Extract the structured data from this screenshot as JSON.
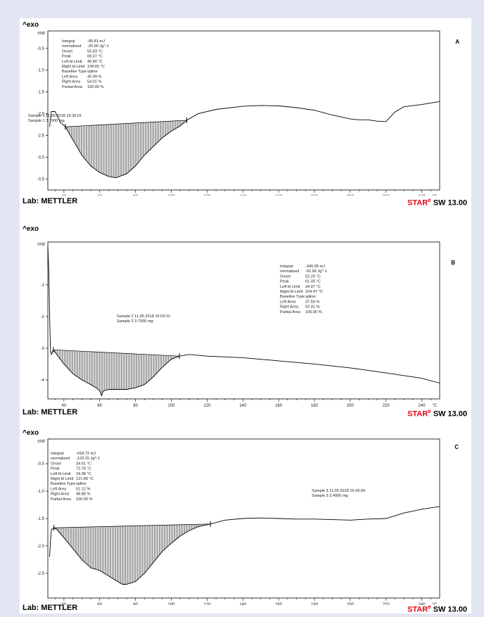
{
  "panels": [
    {
      "exo_label": "^exo",
      "letter": "A",
      "y_unit": "mW",
      "x_unit": "°C",
      "footer": {
        "lab": "Lab: METTLER",
        "brand": "STAR",
        "reg": "e",
        "sw": "SW 13.00"
      },
      "sample_lines": [
        "Sample 1   11.05.2018 13:36:01",
        "Sample 1   3.7000 mg"
      ],
      "results": [
        {
          "label": "Integral",
          "value": "-95.81 mJ"
        },
        {
          "label": "  normalized",
          "value": "-25.90 Jg^-1"
        },
        {
          "label": "Onset",
          "value": "50.83 °C"
        },
        {
          "label": "Peak",
          "value": "69.07 °C"
        },
        {
          "label": "Left bl Limit",
          "value": "40.80 °C"
        },
        {
          "label": "Right bl Limit",
          "value": "108.65 °C"
        },
        {
          "label": "Baseline Type",
          "value": "spline"
        },
        {
          "label": "Left Area",
          "value": "45.99 %"
        },
        {
          "label": "Right Area",
          "value": "54.01 %"
        },
        {
          "label": "Partial Area",
          "value": "100.00 %"
        }
      ]
    },
    {
      "exo_label": "^exo",
      "letter": "B",
      "y_unit": "mW",
      "x_unit": "°C",
      "footer": {
        "lab": "Lab: METTLER",
        "brand": "STAR",
        "reg": "e",
        "sw": "SW 13.00"
      },
      "sample_lines": [
        "Sample 2   11.05.2018 15:03:22",
        "Sample 2   3.7000 mg"
      ],
      "results": [
        {
          "label": "Integral",
          "value": "-340.05 mJ"
        },
        {
          "label": "  normalized",
          "value": "-91.90 Jg^-1"
        },
        {
          "label": "Onset",
          "value": "52.20 °C"
        },
        {
          "label": "Peak",
          "value": "61.05 °C"
        },
        {
          "label": "Left bl Limit",
          "value": "34.07 °C"
        },
        {
          "label": "Right bl Limit",
          "value": "104.47 °C"
        },
        {
          "label": "Baseline Type",
          "value": "spline"
        },
        {
          "label": "Left Area",
          "value": "37.59 %"
        },
        {
          "label": "Right Area",
          "value": "62.41 %"
        },
        {
          "label": "Partial Area",
          "value": "100.00 %"
        }
      ]
    },
    {
      "exo_label": "^exo",
      "letter": "C",
      "y_unit": "mW",
      "x_unit": "°C",
      "footer": {
        "lab": "Lab: METTLER",
        "brand": "STAR",
        "reg": "e",
        "sw": "SW 13.00"
      },
      "sample_lines": [
        "Sample 3   11.05.2018 15:42:09",
        "Sample 3   3.4000 mg"
      ],
      "results": [
        {
          "label": "Integral",
          "value": "-418.72 mJ"
        },
        {
          "label": "  normalized",
          "value": "-123.15 Jg^-1"
        },
        {
          "label": "Onset",
          "value": "34.91 °C"
        },
        {
          "label": "Peak",
          "value": "72.76 °C"
        },
        {
          "label": "Left bl Limit",
          "value": "34.38 °C"
        },
        {
          "label": "Right bl Limit",
          "value": "121.89 °C"
        },
        {
          "label": "Baseline Type",
          "value": "spline"
        },
        {
          "label": "Left Area",
          "value": "51.12 %"
        },
        {
          "label": "Right Area",
          "value": "48.88 %"
        },
        {
          "label": "Partial Area",
          "value": "100.00 %"
        }
      ]
    }
  ],
  "chart_data": [
    {
      "type": "line",
      "panel": "A",
      "xlabel": "°C",
      "ylabel": "mW",
      "xlim": [
        31,
        250
      ],
      "ylim": [
        -3.75,
        -0.1
      ],
      "xticks": [
        40,
        60,
        80,
        100,
        120,
        140,
        160,
        180,
        200,
        220,
        240
      ],
      "yticks": [
        -0.5,
        -1.0,
        -1.5,
        -2.0,
        -2.5,
        -3.0,
        -3.5
      ],
      "ytick_labels": [
        "-0.5",
        "-1.0",
        "-1.5",
        "-2.0",
        "-2.5",
        "-3.0",
        "-3.5"
      ],
      "grid": false,
      "baseline": {
        "x1": 40.8,
        "y1": -2.3,
        "x2": 108.65,
        "y2": -2.15
      },
      "series": [
        {
          "x": [
            32,
            33,
            35,
            38,
            40.8,
            45,
            50,
            55,
            60,
            65,
            69.07,
            75,
            80,
            85,
            90,
            95,
            100,
            105,
            108.65,
            115,
            125,
            140,
            150,
            160,
            170,
            180,
            190,
            200,
            205,
            210,
            215,
            220,
            225,
            230,
            240,
            250
          ],
          "y": [
            -2.3,
            -1.95,
            -1.95,
            -2.2,
            -2.3,
            -2.6,
            -2.95,
            -3.2,
            -3.35,
            -3.44,
            -3.47,
            -3.38,
            -3.2,
            -2.95,
            -2.75,
            -2.55,
            -2.4,
            -2.28,
            -2.15,
            -2.0,
            -1.9,
            -1.83,
            -1.81,
            -1.82,
            -1.86,
            -1.92,
            -2.03,
            -2.12,
            -2.14,
            -2.14,
            -2.17,
            -2.18,
            -1.96,
            -1.84,
            -1.79,
            -1.72
          ]
        }
      ]
    },
    {
      "type": "line",
      "panel": "B",
      "xlabel": "°C",
      "ylabel": "mW",
      "xlim": [
        31,
        250
      ],
      "ylim": [
        -4.6,
        0.35
      ],
      "xticks": [
        40,
        60,
        80,
        100,
        120,
        140,
        160,
        180,
        200,
        220,
        240
      ],
      "yticks": [
        -1,
        -2,
        -3,
        -4
      ],
      "ytick_labels": [
        "-1",
        "-2",
        "-3",
        "-4"
      ],
      "grid": false,
      "baseline": {
        "x1": 34.07,
        "y1": -3.05,
        "x2": 104.47,
        "y2": -3.25
      },
      "series": [
        {
          "x": [
            31,
            31.5,
            32,
            32.5,
            33,
            34.07,
            40,
            45,
            50,
            55,
            58,
            60,
            61.05,
            62,
            65,
            70,
            75,
            80,
            85,
            90,
            95,
            100,
            104.47,
            110,
            120,
            140,
            160,
            180,
            200,
            220,
            240,
            250
          ],
          "y": [
            0.2,
            -0.5,
            -2.0,
            -3.1,
            -3.2,
            -3.05,
            -3.5,
            -3.8,
            -4.0,
            -4.15,
            -4.25,
            -4.35,
            -4.5,
            -4.35,
            -4.3,
            -4.3,
            -4.3,
            -4.25,
            -4.15,
            -3.9,
            -3.6,
            -3.35,
            -3.25,
            -3.2,
            -3.25,
            -3.3,
            -3.4,
            -3.5,
            -3.62,
            -3.78,
            -3.95,
            -4.1
          ]
        }
      ]
    },
    {
      "type": "line",
      "panel": "C",
      "xlabel": "°C",
      "ylabel": "mW",
      "xlim": [
        31,
        250
      ],
      "ylim": [
        -2.95,
        -0.05
      ],
      "xticks": [
        40,
        60,
        80,
        100,
        120,
        140,
        160,
        180,
        200,
        220,
        240
      ],
      "yticks": [
        -0.5,
        -1.0,
        -1.5,
        -2.0,
        -2.5
      ],
      "ytick_labels": [
        "-0.5",
        "-1.0",
        "-1.5",
        "-2.0",
        "-2.5"
      ],
      "grid": false,
      "baseline": {
        "x1": 34.38,
        "y1": -1.67,
        "x2": 121.89,
        "y2": -1.6
      },
      "series": [
        {
          "x": [
            32,
            32.5,
            33,
            34.38,
            36,
            40,
            45,
            50,
            55,
            60,
            65,
            70,
            72.76,
            75,
            80,
            85,
            90,
            95,
            100,
            105,
            110,
            115,
            121.89,
            130,
            140,
            150,
            160,
            170,
            180,
            190,
            200,
            210,
            220,
            230,
            240,
            250
          ],
          "y": [
            -2.2,
            -1.9,
            -1.7,
            -1.67,
            -1.7,
            -1.85,
            -2.05,
            -2.25,
            -2.4,
            -2.45,
            -2.55,
            -2.65,
            -2.7,
            -2.7,
            -2.65,
            -2.5,
            -2.3,
            -2.1,
            -1.95,
            -1.82,
            -1.72,
            -1.65,
            -1.6,
            -1.53,
            -1.5,
            -1.49,
            -1.5,
            -1.51,
            -1.51,
            -1.52,
            -1.53,
            -1.51,
            -1.5,
            -1.4,
            -1.33,
            -1.28
          ]
        }
      ]
    }
  ]
}
